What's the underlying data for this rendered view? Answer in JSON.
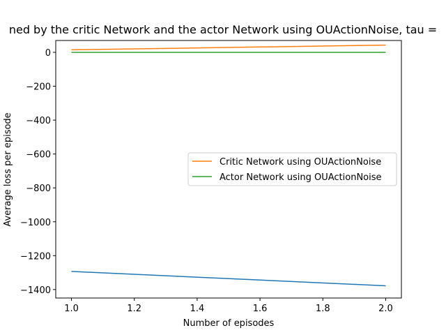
{
  "chart_data": {
    "type": "line",
    "title": "ned by the critic Network and the actor Network using OUActionNoise, tau =",
    "xlabel": "Number of episodes",
    "ylabel": "Average loss per episode",
    "xlim": [
      0.95,
      2.05
    ],
    "ylim": [
      -1450,
      70
    ],
    "xticks": [
      1.0,
      1.2,
      1.4,
      1.6,
      1.8,
      2.0
    ],
    "xtick_labels": [
      "1.0",
      "1.2",
      "1.4",
      "1.6",
      "1.8",
      "2.0"
    ],
    "yticks": [
      0,
      -200,
      -400,
      -600,
      -800,
      -1000,
      -1200,
      -1400
    ],
    "ytick_labels": [
      "0",
      "−200",
      "−400",
      "−600",
      "−800",
      "−1000",
      "−1200",
      "−1400"
    ],
    "grid": false,
    "legend_position": "center-right",
    "series": [
      {
        "color": "#1f77b4",
        "x": [
          1.0,
          2.0
        ],
        "y": [
          -1293,
          -1378
        ]
      },
      {
        "name": "Critic Network using OUActionNoise",
        "color": "#ff7f0e",
        "x": [
          1.0,
          2.0
        ],
        "y": [
          15,
          43
        ]
      },
      {
        "name": "Actor Network using OUActionNoise",
        "color": "#2ca02c",
        "x": [
          1.0,
          2.0
        ],
        "y": [
          0,
          0
        ]
      }
    ]
  }
}
